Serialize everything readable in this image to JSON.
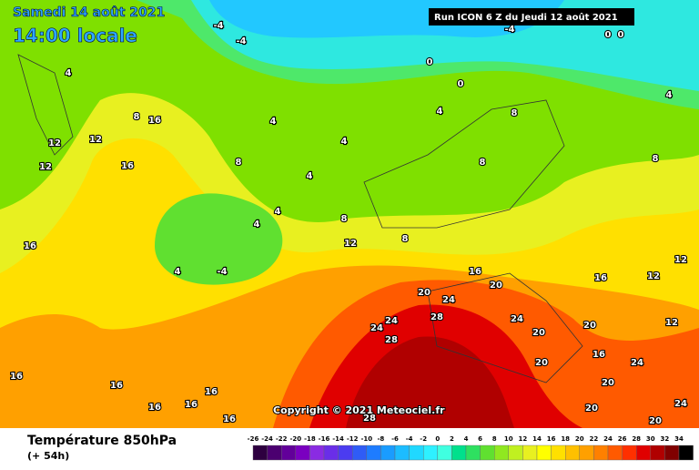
{
  "header": {
    "date": "Samedi 14 août 2021",
    "time": "14:00 locale",
    "run": "Run ICON 6 Z du Jeudi 12 août 2021"
  },
  "copyright": "Copyright © 2021 Meteociel.fr",
  "footer": {
    "title": "Température 850hPa",
    "lead": "(+ 54h)"
  },
  "colorbar": {
    "ticks": [
      -26,
      -24,
      -22,
      -20,
      -18,
      -16,
      -14,
      -12,
      -10,
      -8,
      -6,
      -4,
      -2,
      0,
      2,
      4,
      6,
      8,
      10,
      12,
      14,
      16,
      18,
      20,
      22,
      24,
      26,
      28,
      30,
      32,
      34
    ],
    "colors": [
      "#2e0040",
      "#4b0070",
      "#62009a",
      "#7a00c0",
      "#8a2be2",
      "#6a2ee8",
      "#4b3cf0",
      "#2f5cf6",
      "#1e7cff",
      "#1a9cff",
      "#1cbcff",
      "#20d8ff",
      "#2ef0ff",
      "#40ffe0",
      "#00e08c",
      "#2ee060",
      "#60e030",
      "#90e820",
      "#c0f020",
      "#e8f020",
      "#ffff00",
      "#ffe000",
      "#ffc000",
      "#ffa000",
      "#ff8000",
      "#ff5a00",
      "#ff3000",
      "#e00000",
      "#b00000",
      "#800000",
      "#000000"
    ]
  },
  "contour_labels": [
    -4,
    -4,
    -4,
    0,
    0,
    0,
    0,
    4,
    4,
    4,
    4,
    4,
    4,
    4,
    4,
    4,
    -4,
    8,
    8,
    8,
    8,
    8,
    8,
    8,
    12,
    12,
    12,
    12,
    12,
    12,
    16,
    16,
    16,
    16,
    16,
    16,
    16,
    16,
    16,
    16,
    16,
    20,
    20,
    20,
    20,
    20,
    20,
    20,
    20,
    24,
    24,
    24,
    24,
    24,
    24,
    28,
    28,
    28,
    12,
    16
  ]
}
